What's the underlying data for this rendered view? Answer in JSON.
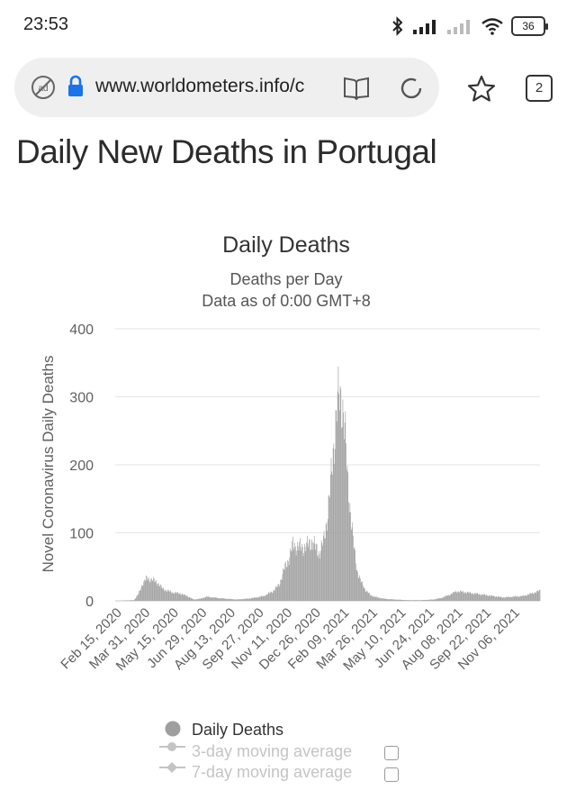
{
  "status_bar": {
    "time": "23:53",
    "battery": "36",
    "icons": [
      "bluetooth-icon",
      "signal-icon",
      "signal-weak-icon",
      "wifi-icon",
      "battery-icon"
    ]
  },
  "browser": {
    "url": "www.worldometers.info/c",
    "tab_count": "2",
    "icons": [
      "ad-block-icon",
      "lock-icon",
      "reader-icon",
      "reload-icon",
      "star-icon",
      "tabs-icon"
    ]
  },
  "page": {
    "title": "Daily New Deaths in Portugal"
  },
  "chart_data": {
    "type": "bar",
    "title": "Daily Deaths",
    "subtitle_line1": "Deaths per Day",
    "subtitle_line2": "Data as of 0:00 GMT+8",
    "ylabel": "Novel Coronavirus Daily Deaths",
    "ylim": [
      0,
      400
    ],
    "yticks": [
      "0",
      "100",
      "200",
      "300",
      "400"
    ],
    "grid": true,
    "x_start": "2020-02-15",
    "x_end": "2021-12-01",
    "x_tick_labels": [
      "Feb 15, 2020",
      "Mar 31, 2020",
      "May 15, 2020",
      "Jun 29, 2020",
      "Aug 13, 2020",
      "Sep 27, 2020",
      "Nov 11, 2020",
      "Dec 26, 2020",
      "Feb 09, 2021",
      "Mar 26, 2021",
      "May 10, 2021",
      "Jun 24, 2021",
      "Aug 08, 2021",
      "Sep 22, 2021",
      "Nov 06, 2021"
    ],
    "series_points": [
      [
        "2020-02-15",
        0
      ],
      [
        "2020-03-15",
        1
      ],
      [
        "2020-03-22",
        10
      ],
      [
        "2020-03-28",
        25
      ],
      [
        "2020-04-04",
        33
      ],
      [
        "2020-04-12",
        31
      ],
      [
        "2020-04-20",
        27
      ],
      [
        "2020-04-28",
        18
      ],
      [
        "2020-05-05",
        15
      ],
      [
        "2020-05-15",
        12
      ],
      [
        "2020-05-25",
        11
      ],
      [
        "2020-06-05",
        7
      ],
      [
        "2020-06-15",
        2
      ],
      [
        "2020-06-25",
        3
      ],
      [
        "2020-07-05",
        6
      ],
      [
        "2020-07-15",
        5
      ],
      [
        "2020-07-25",
        4
      ],
      [
        "2020-08-05",
        3
      ],
      [
        "2020-08-20",
        2
      ],
      [
        "2020-09-05",
        3
      ],
      [
        "2020-09-20",
        5
      ],
      [
        "2020-10-01",
        7
      ],
      [
        "2020-10-15",
        14
      ],
      [
        "2020-10-25",
        24
      ],
      [
        "2020-11-01",
        45
      ],
      [
        "2020-11-08",
        60
      ],
      [
        "2020-11-15",
        82
      ],
      [
        "2020-11-22",
        80
      ],
      [
        "2020-11-30",
        78
      ],
      [
        "2020-12-08",
        82
      ],
      [
        "2020-12-15",
        88
      ],
      [
        "2020-12-20",
        78
      ],
      [
        "2020-12-26",
        70
      ],
      [
        "2021-01-02",
        90
      ],
      [
        "2021-01-08",
        130
      ],
      [
        "2021-01-13",
        180
      ],
      [
        "2021-01-18",
        240
      ],
      [
        "2021-01-22",
        285
      ],
      [
        "2021-01-26",
        300
      ],
      [
        "2021-01-30",
        295
      ],
      [
        "2021-02-03",
        255
      ],
      [
        "2021-02-07",
        185
      ],
      [
        "2021-02-12",
        130
      ],
      [
        "2021-02-17",
        80
      ],
      [
        "2021-02-22",
        45
      ],
      [
        "2021-02-28",
        28
      ],
      [
        "2021-03-07",
        16
      ],
      [
        "2021-03-15",
        8
      ],
      [
        "2021-03-25",
        5
      ],
      [
        "2021-04-05",
        3
      ],
      [
        "2021-04-20",
        2
      ],
      [
        "2021-05-10",
        1
      ],
      [
        "2021-06-01",
        1
      ],
      [
        "2021-06-20",
        2
      ],
      [
        "2021-07-01",
        4
      ],
      [
        "2021-07-15",
        9
      ],
      [
        "2021-07-25",
        14
      ],
      [
        "2021-08-05",
        13
      ],
      [
        "2021-08-20",
        11
      ],
      [
        "2021-09-05",
        9
      ],
      [
        "2021-09-20",
        7
      ],
      [
        "2021-10-05",
        5
      ],
      [
        "2021-10-20",
        6
      ],
      [
        "2021-11-05",
        7
      ],
      [
        "2021-11-15",
        10
      ],
      [
        "2021-11-25",
        13
      ],
      [
        "2021-12-01",
        15
      ]
    ],
    "legend": [
      {
        "label": "Daily Deaths",
        "active": true
      },
      {
        "label": "3-day moving average",
        "active": false
      },
      {
        "label": "7-day moving average",
        "active": false
      }
    ],
    "legend_position": "bottom",
    "colors": {
      "bar": "#9e9e9e",
      "grid": "#e6e6e6",
      "axis_text": "#606060",
      "legend_inactive": "#c4c4c4"
    }
  }
}
